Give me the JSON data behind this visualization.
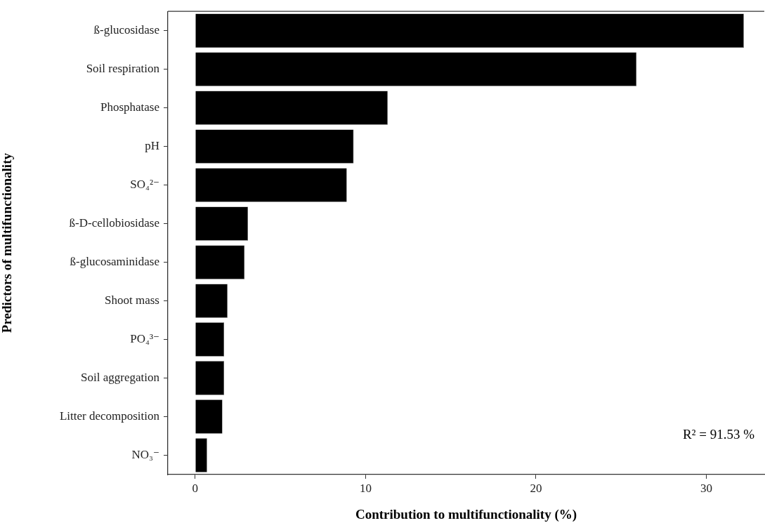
{
  "chart_data": {
    "type": "bar",
    "orientation": "horizontal",
    "xlabel": "Contribution to multifunctionality (%)",
    "ylabel": "Predictors of multifunctionality",
    "categories": [
      "ß-glucosidase",
      "Soil respiration",
      "Phosphatase",
      "pH",
      "SO₄²⁻",
      "ß-D-cellobiosidase",
      "ß-glucosaminidase",
      "Shoot mass",
      "PO₄³⁻",
      "Soil aggregation",
      "Litter decomposition",
      "NO₃⁻"
    ],
    "values": [
      32.2,
      25.9,
      11.3,
      9.3,
      8.9,
      3.1,
      2.9,
      1.9,
      1.7,
      1.7,
      1.6,
      0.7
    ],
    "color": "#000000",
    "xlim": [
      -1.6,
      33.4
    ],
    "xticks": [
      0,
      10,
      20,
      30
    ],
    "grid": false,
    "annotations": [
      "R² = 91.53 %"
    ]
  }
}
